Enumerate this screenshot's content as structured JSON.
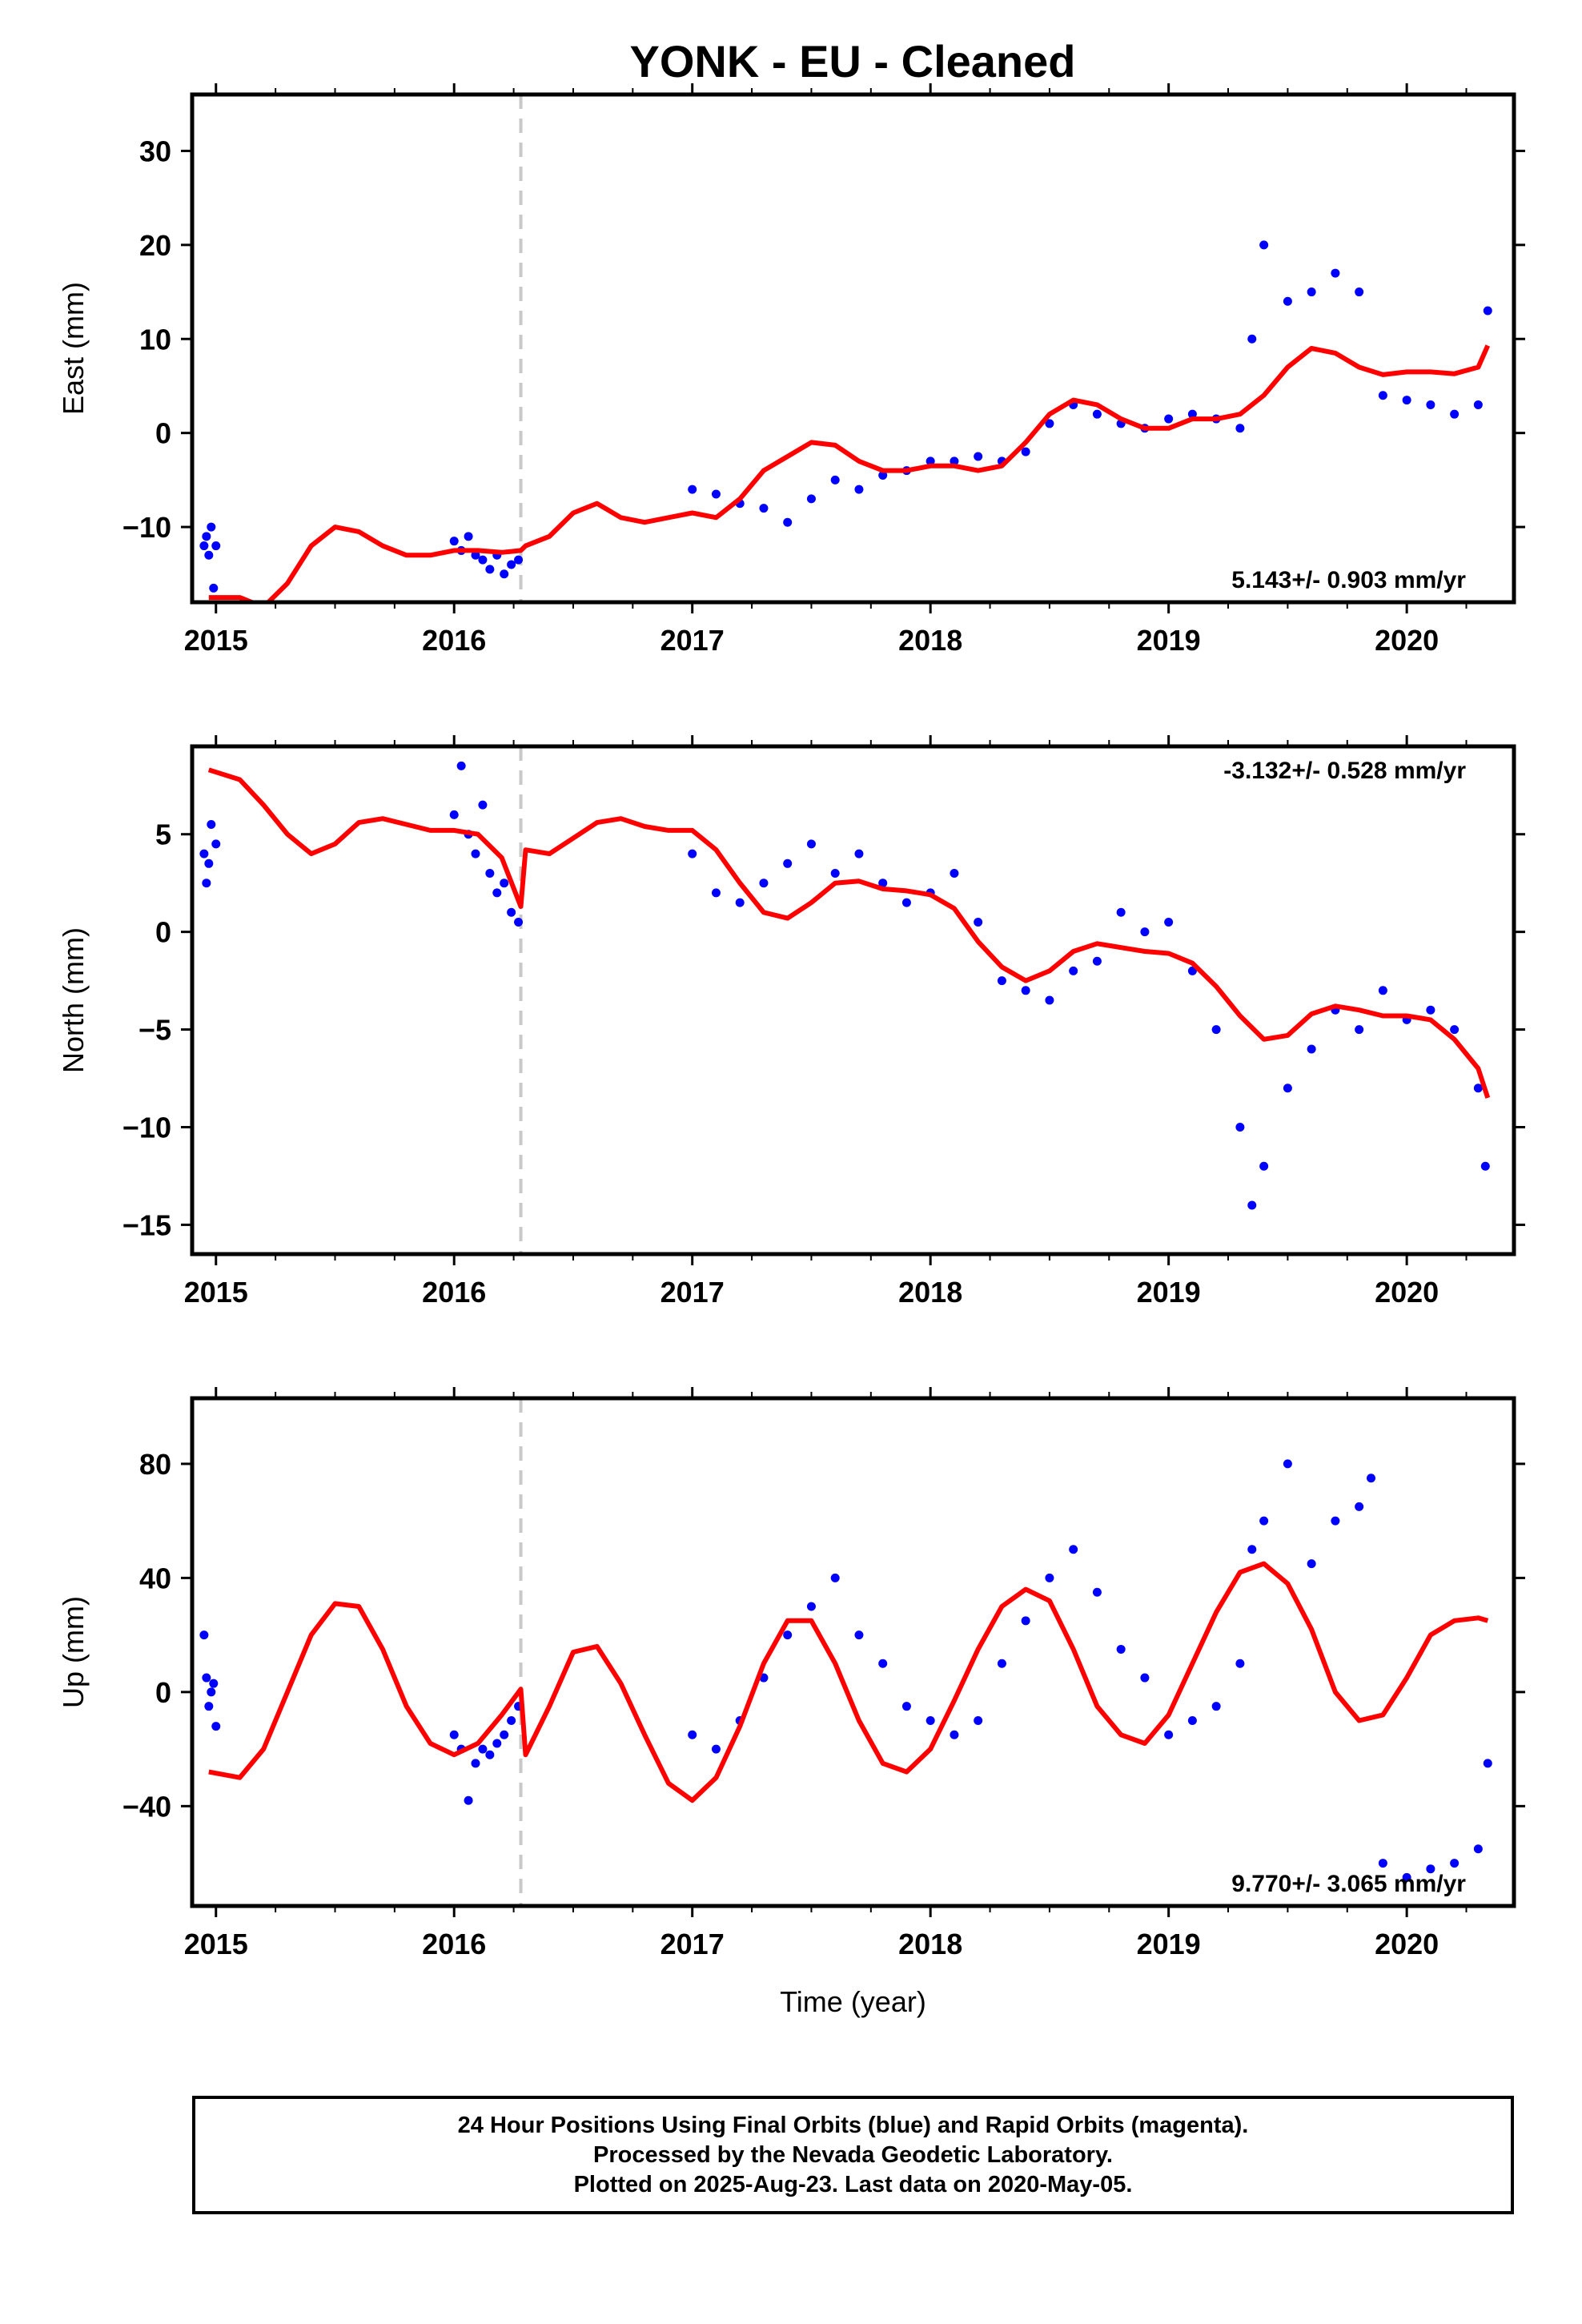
{
  "title": "YONK  - EU - Cleaned",
  "footer": {
    "line1": "24 Hour Positions Using Final Orbits (blue) and Rapid Orbits (magenta).",
    "line2": "Processed by the Nevada Geodetic Laboratory.",
    "line3": "Plotted on 2025-Aug-23. Last data on 2020-May-05."
  },
  "colors": {
    "final_orbits": "#0000ff",
    "model": "#ff0000",
    "equipment_change": "#c8c8c8",
    "frame": "#000000"
  },
  "chart_data": [
    {
      "type": "scatter",
      "component": "East",
      "ylabel": "East (mm)",
      "xlabel": "",
      "xlim": [
        2014.9,
        2020.45
      ],
      "ylim": [
        -18,
        36
      ],
      "xticks": [
        2015,
        2016,
        2017,
        2018,
        2019,
        2020
      ],
      "yticks": [
        -10,
        0,
        10,
        20,
        30
      ],
      "rate_label": "5.143+/- 0.903 mm/yr",
      "rate_position": "bottom-right",
      "equipment_change_year": 2016.28,
      "series": [
        {
          "name": "Final Orbits",
          "color": "#0000ff",
          "x": [
            2014.95,
            2014.96,
            2014.97,
            2014.98,
            2014.99,
            2015.0,
            2016.0,
            2016.03,
            2016.06,
            2016.09,
            2016.12,
            2016.15,
            2016.18,
            2016.21,
            2016.24,
            2016.27,
            2017.0,
            2017.1,
            2017.2,
            2017.3,
            2017.4,
            2017.5,
            2017.6,
            2017.7,
            2017.8,
            2017.9,
            2018.0,
            2018.1,
            2018.2,
            2018.3,
            2018.4,
            2018.5,
            2018.6,
            2018.7,
            2018.8,
            2018.9,
            2019.0,
            2019.1,
            2019.2,
            2019.3,
            2019.35,
            2019.4,
            2019.5,
            2019.6,
            2019.7,
            2019.8,
            2019.9,
            2020.0,
            2020.1,
            2020.2,
            2020.3,
            2020.34
          ],
          "y": [
            -12,
            -11,
            -13,
            -10,
            -16.5,
            -12,
            -11.5,
            -12.5,
            -11,
            -13,
            -13.5,
            -14.5,
            -13,
            -15,
            -14,
            -13.5,
            -6,
            -6.5,
            -7.5,
            -8,
            -9.5,
            -7,
            -5,
            -6,
            -4.5,
            -4,
            -3,
            -3,
            -2.5,
            -3,
            -2,
            1,
            3,
            2,
            1,
            0.5,
            1.5,
            2,
            1.5,
            0.5,
            10,
            20,
            14,
            15,
            17,
            15,
            4,
            3.5,
            3,
            2,
            3,
            13
          ]
        }
      ],
      "model": {
        "name": "Model",
        "color": "#ff0000",
        "x": [
          2014.97,
          2015.1,
          2015.2,
          2015.3,
          2015.4,
          2015.5,
          2015.6,
          2015.7,
          2015.8,
          2015.9,
          2016.0,
          2016.1,
          2016.2,
          2016.28,
          2016.3,
          2016.4,
          2016.5,
          2016.6,
          2016.7,
          2016.8,
          2016.9,
          2017.0,
          2017.1,
          2017.2,
          2017.3,
          2017.4,
          2017.5,
          2017.6,
          2017.7,
          2017.8,
          2017.9,
          2018.0,
          2018.1,
          2018.2,
          2018.3,
          2018.4,
          2018.5,
          2018.6,
          2018.7,
          2018.8,
          2018.9,
          2019.0,
          2019.1,
          2019.2,
          2019.3,
          2019.4,
          2019.5,
          2019.6,
          2019.7,
          2019.8,
          2019.9,
          2020.0,
          2020.1,
          2020.2,
          2020.3,
          2020.34
        ],
        "y": [
          -17.5,
          -17.5,
          -18.5,
          -16,
          -12,
          -10,
          -10.5,
          -12,
          -13,
          -13,
          -12.5,
          -12.5,
          -12.7,
          -12.5,
          -12,
          -11,
          -8.5,
          -7.5,
          -9,
          -9.5,
          -9,
          -8.5,
          -9,
          -7,
          -4,
          -2.5,
          -1,
          -1.3,
          -3,
          -4,
          -4,
          -3.5,
          -3.5,
          -4,
          -3.5,
          -1,
          2,
          3.5,
          3,
          1.5,
          0.5,
          0.5,
          1.5,
          1.5,
          2,
          4,
          7,
          9,
          8.5,
          7,
          6.2,
          6.5,
          6.5,
          6.3,
          7,
          9.3
        ]
      }
    },
    {
      "type": "scatter",
      "component": "North",
      "ylabel": "North (mm)",
      "xlabel": "",
      "xlim": [
        2014.9,
        2020.45
      ],
      "ylim": [
        -16.5,
        9.5
      ],
      "xticks": [
        2015,
        2016,
        2017,
        2018,
        2019,
        2020
      ],
      "yticks": [
        -15,
        -10,
        -5,
        0,
        5
      ],
      "rate_label": "-3.132+/- 0.528 mm/yr",
      "rate_position": "top-right",
      "equipment_change_year": 2016.28,
      "series": [
        {
          "name": "Final Orbits",
          "color": "#0000ff",
          "x": [
            2014.95,
            2014.96,
            2014.97,
            2014.98,
            2015.0,
            2016.0,
            2016.03,
            2016.06,
            2016.09,
            2016.12,
            2016.15,
            2016.18,
            2016.21,
            2016.24,
            2016.27,
            2017.0,
            2017.1,
            2017.2,
            2017.3,
            2017.4,
            2017.5,
            2017.6,
            2017.7,
            2017.8,
            2017.9,
            2018.0,
            2018.1,
            2018.2,
            2018.3,
            2018.4,
            2018.5,
            2018.6,
            2018.7,
            2018.8,
            2018.9,
            2019.0,
            2019.1,
            2019.2,
            2019.3,
            2019.35,
            2019.4,
            2019.5,
            2019.6,
            2019.7,
            2019.8,
            2019.9,
            2020.0,
            2020.1,
            2020.2,
            2020.3,
            2020.33
          ],
          "y": [
            4,
            2.5,
            3.5,
            5.5,
            4.5,
            6,
            8.5,
            5,
            4,
            6.5,
            3,
            2,
            2.5,
            1,
            0.5,
            4,
            2,
            1.5,
            2.5,
            3.5,
            4.5,
            3,
            4,
            2.5,
            1.5,
            2,
            3,
            0.5,
            -2.5,
            -3,
            -3.5,
            -2,
            -1.5,
            1,
            0,
            0.5,
            -2,
            -5,
            -10,
            -14,
            -12,
            -8,
            -6,
            -4,
            -5,
            -3,
            -4.5,
            -4,
            -5,
            -8,
            -12
          ]
        }
      ],
      "model": {
        "name": "Model",
        "color": "#ff0000",
        "x": [
          2014.97,
          2015.1,
          2015.2,
          2015.3,
          2015.4,
          2015.5,
          2015.6,
          2015.7,
          2015.8,
          2015.9,
          2016.0,
          2016.1,
          2016.2,
          2016.28,
          2016.3,
          2016.4,
          2016.5,
          2016.6,
          2016.7,
          2016.8,
          2016.9,
          2017.0,
          2017.1,
          2017.2,
          2017.3,
          2017.4,
          2017.5,
          2017.6,
          2017.7,
          2017.8,
          2017.9,
          2018.0,
          2018.1,
          2018.2,
          2018.3,
          2018.4,
          2018.5,
          2018.6,
          2018.7,
          2018.8,
          2018.9,
          2019.0,
          2019.1,
          2019.2,
          2019.3,
          2019.4,
          2019.5,
          2019.6,
          2019.7,
          2019.8,
          2019.9,
          2020.0,
          2020.1,
          2020.2,
          2020.3,
          2020.34
        ],
        "y": [
          8.3,
          7.8,
          6.5,
          5,
          4,
          4.5,
          5.6,
          5.8,
          5.5,
          5.2,
          5.2,
          5,
          3.8,
          1.3,
          4.2,
          4,
          4.8,
          5.6,
          5.8,
          5.4,
          5.2,
          5.2,
          4.2,
          2.5,
          1,
          0.7,
          1.5,
          2.5,
          2.6,
          2.2,
          2.1,
          1.9,
          1.2,
          -0.5,
          -1.8,
          -2.5,
          -2,
          -1,
          -0.6,
          -0.8,
          -1,
          -1.1,
          -1.6,
          -2.8,
          -4.3,
          -5.5,
          -5.3,
          -4.2,
          -3.8,
          -4,
          -4.3,
          -4.3,
          -4.5,
          -5.5,
          -7,
          -8.5
        ]
      }
    },
    {
      "type": "scatter",
      "component": "Up",
      "ylabel": "Up (mm)",
      "xlabel": "Time (year)",
      "xlim": [
        2014.9,
        2020.45
      ],
      "ylim": [
        -75,
        103
      ],
      "xticks": [
        2015,
        2016,
        2017,
        2018,
        2019,
        2020
      ],
      "yticks": [
        -40,
        0,
        40,
        80
      ],
      "rate_label": "9.770+/- 3.065 mm/yr",
      "rate_position": "bottom-right",
      "equipment_change_year": 2016.28,
      "series": [
        {
          "name": "Final Orbits",
          "color": "#0000ff",
          "x": [
            2014.95,
            2014.96,
            2014.97,
            2014.98,
            2014.99,
            2015.0,
            2016.0,
            2016.03,
            2016.06,
            2016.09,
            2016.12,
            2016.15,
            2016.18,
            2016.21,
            2016.24,
            2016.27,
            2017.0,
            2017.1,
            2017.2,
            2017.3,
            2017.4,
            2017.5,
            2017.6,
            2017.7,
            2017.8,
            2017.9,
            2018.0,
            2018.1,
            2018.2,
            2018.3,
            2018.4,
            2018.5,
            2018.6,
            2018.7,
            2018.8,
            2018.9,
            2019.0,
            2019.1,
            2019.2,
            2019.3,
            2019.35,
            2019.4,
            2019.5,
            2019.6,
            2019.7,
            2019.8,
            2019.85,
            2019.9,
            2020.0,
            2020.1,
            2020.2,
            2020.3,
            2020.34
          ],
          "y": [
            20,
            5,
            -5,
            0,
            3,
            -12,
            -15,
            -20,
            -38,
            -25,
            -20,
            -22,
            -18,
            -15,
            -10,
            -5,
            -15,
            -20,
            -10,
            5,
            20,
            30,
            40,
            20,
            10,
            -5,
            -10,
            -15,
            -10,
            10,
            25,
            40,
            50,
            35,
            15,
            5,
            -15,
            -10,
            -5,
            10,
            50,
            60,
            80,
            45,
            60,
            65,
            75,
            -60,
            -65,
            -62,
            -60,
            -55,
            -25
          ]
        }
      ],
      "model": {
        "name": "Model",
        "color": "#ff0000",
        "x": [
          2014.97,
          2015.1,
          2015.2,
          2015.3,
          2015.4,
          2015.5,
          2015.6,
          2015.7,
          2015.8,
          2015.9,
          2016.0,
          2016.1,
          2016.2,
          2016.28,
          2016.3,
          2016.4,
          2016.5,
          2016.6,
          2016.7,
          2016.8,
          2016.9,
          2017.0,
          2017.1,
          2017.2,
          2017.3,
          2017.4,
          2017.5,
          2017.6,
          2017.7,
          2017.8,
          2017.9,
          2018.0,
          2018.1,
          2018.2,
          2018.3,
          2018.4,
          2018.5,
          2018.6,
          2018.7,
          2018.8,
          2018.9,
          2019.0,
          2019.1,
          2019.2,
          2019.3,
          2019.4,
          2019.5,
          2019.6,
          2019.7,
          2019.8,
          2019.9,
          2020.0,
          2020.1,
          2020.2,
          2020.3,
          2020.34
        ],
        "y": [
          -28,
          -30,
          -20,
          0,
          20,
          31,
          30,
          15,
          -5,
          -18,
          -22,
          -18,
          -8,
          1,
          -22,
          -5,
          14,
          16,
          3,
          -15,
          -32,
          -38,
          -30,
          -12,
          10,
          25,
          25,
          10,
          -10,
          -25,
          -28,
          -20,
          -3,
          15,
          30,
          36,
          32,
          15,
          -5,
          -15,
          -18,
          -8,
          10,
          28,
          42,
          45,
          38,
          22,
          0,
          -10,
          -8,
          5,
          20,
          25,
          26,
          25
        ]
      }
    }
  ]
}
